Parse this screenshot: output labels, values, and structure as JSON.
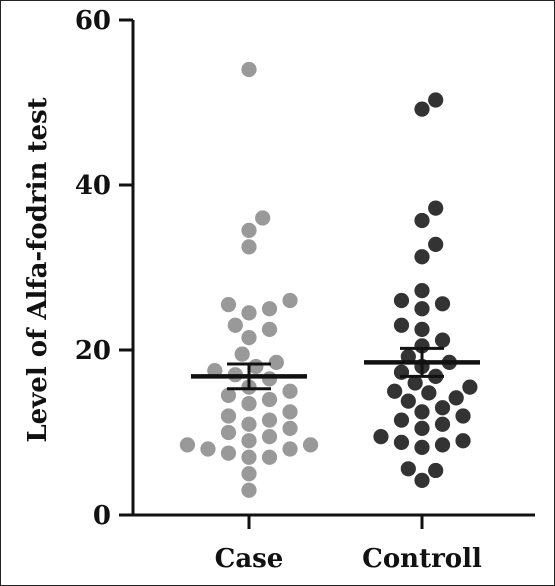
{
  "chart_data": {
    "type": "scatter",
    "title": "",
    "xlabel": "",
    "ylabel": "Level of Alfa-fodrin test",
    "ylim": [
      0,
      60
    ],
    "yticks": [
      "0",
      "20",
      "40",
      "60"
    ],
    "categories": [
      "Case",
      "Controll"
    ],
    "grid": false,
    "series": [
      {
        "category": "Case",
        "color": "#999999",
        "mean": 16.8,
        "sem_low": 15.3,
        "sem_high": 18.3,
        "values": [
          54,
          36,
          34.5,
          32.5,
          26,
          25.5,
          25,
          24.5,
          23,
          22.5,
          21.5,
          19.5,
          18.5,
          18,
          17.5,
          17,
          16.5,
          15.5,
          15,
          14.5,
          14,
          13.5,
          12.5,
          12,
          11.5,
          11,
          10.5,
          10,
          9.5,
          9,
          8.5,
          8.5,
          8,
          8,
          7.5,
          7,
          7,
          5,
          3
        ]
      },
      {
        "category": "Controll",
        "color": "#333333",
        "mean": 18.5,
        "sem_low": 16.8,
        "sem_high": 20.2,
        "values": [
          50.3,
          49.2,
          37.2,
          35.7,
          32.8,
          31.3,
          27.2,
          26,
          25.6,
          25,
          23,
          22.5,
          21.2,
          20.5,
          19.2,
          18.5,
          18,
          17.3,
          16.8,
          16,
          15.5,
          15,
          14.8,
          14.2,
          13.8,
          13,
          12.5,
          12,
          11.5,
          11,
          10.5,
          9.5,
          9,
          8.8,
          8.5,
          8.2,
          5.6,
          5.4,
          4.2
        ]
      }
    ]
  }
}
